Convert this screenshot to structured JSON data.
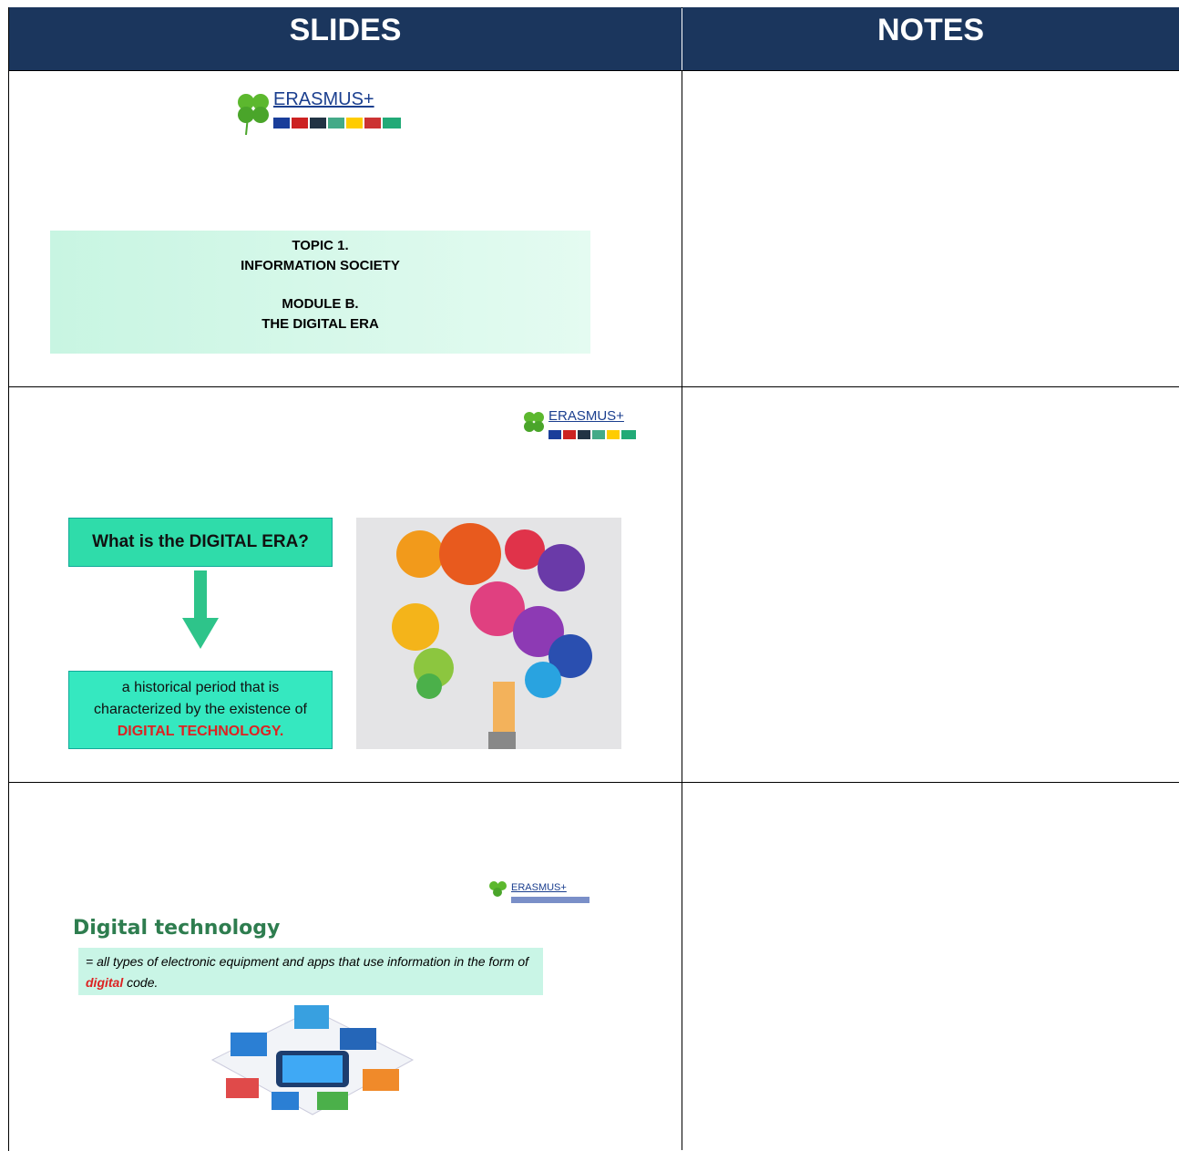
{
  "table": {
    "header": [
      "SLIDES",
      "NOTES"
    ],
    "slides": [
      {
        "logo": "ERASMUS+",
        "lines": [
          "TOPIC 1.",
          "INFORMATION SOCIETY",
          "MODULE B.",
          "THE DIGITAL ERA"
        ]
      },
      {
        "logo": "ERASMUS+",
        "question": "What is the DIGITAL ERA?",
        "answer": "a historical period that is characterized by the existence of",
        "highlight": "DIGITAL TECHNOLOGY."
      },
      {
        "logo": "ERASMUS+",
        "title": "Digital technology",
        "definition": "= all types of electronic equipment and apps that use information in the form of",
        "highlight": "digital",
        "tail": "code."
      }
    ]
  }
}
